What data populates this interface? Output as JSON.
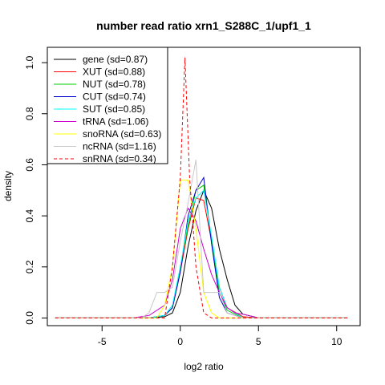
{
  "chart_data": {
    "type": "line",
    "title": "number read ratio xrn1_S288C_1/upf1_1",
    "xlabel": "log2 ratio",
    "ylabel": "density",
    "xlim": [
      -8.5,
      11.5
    ],
    "ylim": [
      -0.03,
      1.06
    ],
    "x_ticks": [
      -5,
      0,
      5,
      10
    ],
    "x_tick_labels": [
      "-5",
      "0",
      "5",
      "10"
    ],
    "y_ticks": [
      0.0,
      0.2,
      0.4,
      0.6,
      0.8,
      1.0
    ],
    "y_tick_labels": [
      "0.0",
      "0.2",
      "0.4",
      "0.6",
      "0.8",
      "1.0"
    ],
    "grid": false,
    "legend_position": "top-left",
    "series": [
      {
        "name": "gene (sd=0.87)",
        "color": "#000000",
        "dashed": false,
        "x": [
          -8,
          -3,
          -2,
          -1,
          -0.5,
          0,
          0.5,
          1,
          1.5,
          2,
          2.5,
          3,
          3.5,
          4,
          5,
          7,
          10.7
        ],
        "y": [
          0,
          0,
          0,
          0.005,
          0.02,
          0.1,
          0.28,
          0.42,
          0.5,
          0.43,
          0.27,
          0.15,
          0.05,
          0.015,
          0,
          0,
          0
        ]
      },
      {
        "name": "XUT (sd=0.88)",
        "color": "#ff0000",
        "dashed": false,
        "x": [
          -8,
          -3,
          -2,
          -1,
          -0.5,
          0,
          0.5,
          1,
          1.5,
          2,
          2.5,
          3,
          4,
          5,
          10.7
        ],
        "y": [
          0,
          0,
          0,
          0.01,
          0.04,
          0.18,
          0.35,
          0.47,
          0.46,
          0.3,
          0.12,
          0.04,
          0.005,
          0,
          0
        ]
      },
      {
        "name": "NUT (sd=0.78)",
        "color": "#00cc00",
        "dashed": false,
        "x": [
          -8,
          -2,
          -1,
          -0.5,
          0,
          0.5,
          1,
          1.5,
          2,
          2.5,
          3,
          4,
          10.7
        ],
        "y": [
          0,
          0,
          0.01,
          0.04,
          0.2,
          0.36,
          0.5,
          0.52,
          0.3,
          0.1,
          0.03,
          0,
          0
        ]
      },
      {
        "name": "CUT (sd=0.74)",
        "color": "#0000cc",
        "dashed": false,
        "x": [
          -8,
          -2,
          -1,
          -0.5,
          0,
          0.5,
          1,
          1.5,
          2,
          2.5,
          3,
          4,
          10.7
        ],
        "y": [
          0,
          0,
          0.01,
          0.04,
          0.18,
          0.4,
          0.5,
          0.55,
          0.29,
          0.08,
          0.02,
          0,
          0
        ]
      },
      {
        "name": "SUT (sd=0.85)",
        "color": "#00ffff",
        "dashed": false,
        "x": [
          -8,
          -2,
          -1,
          -0.5,
          0,
          0.5,
          1,
          1.5,
          2,
          2.5,
          3,
          4,
          10.7
        ],
        "y": [
          0,
          0,
          0.01,
          0.05,
          0.2,
          0.38,
          0.47,
          0.5,
          0.32,
          0.12,
          0.04,
          0,
          0
        ]
      },
      {
        "name": "tRNA (sd=1.06)",
        "color": "#cc00cc",
        "dashed": false,
        "x": [
          -8,
          -3,
          -2,
          -1,
          -0.5,
          0,
          0.5,
          1,
          1.5,
          2,
          2.5,
          3,
          3.5,
          4,
          5,
          10.7
        ],
        "y": [
          0,
          0,
          0.01,
          0.05,
          0.15,
          0.35,
          0.43,
          0.38,
          0.27,
          0.17,
          0.1,
          0.04,
          0.02,
          0.015,
          0,
          0
        ]
      },
      {
        "name": "snoRNA (sd=0.63)",
        "color": "#ffff00",
        "dashed": false,
        "x": [
          -8,
          -1.5,
          -1,
          -0.5,
          0,
          0.5,
          1,
          1.5,
          2,
          2.5,
          10.7
        ],
        "y": [
          0,
          0,
          0.05,
          0.2,
          0.54,
          0.54,
          0.35,
          0.1,
          0.02,
          0,
          0
        ]
      },
      {
        "name": "ncRNA (sd=1.16)",
        "color": "#c8c8c8",
        "dashed": false,
        "x": [
          -8,
          -2.5,
          -2,
          -1.5,
          -1,
          -0.5,
          0,
          0.5,
          1,
          1.5,
          2,
          2.5,
          3,
          4,
          10.7
        ],
        "y": [
          0,
          0,
          0.02,
          0.1,
          0.1,
          0.12,
          0.3,
          0.45,
          0.62,
          0.1,
          0.1,
          0.1,
          0.02,
          0,
          0
        ]
      },
      {
        "name": "snRNA (sd=0.34)",
        "color": "#ff0000",
        "dashed": true,
        "x": [
          -8,
          -1,
          -0.5,
          0,
          0.3,
          0.6,
          1,
          1.5,
          2,
          10.7
        ],
        "y": [
          0,
          0,
          0.2,
          0.55,
          1.02,
          0.55,
          0.2,
          0.02,
          0,
          0
        ]
      }
    ]
  }
}
